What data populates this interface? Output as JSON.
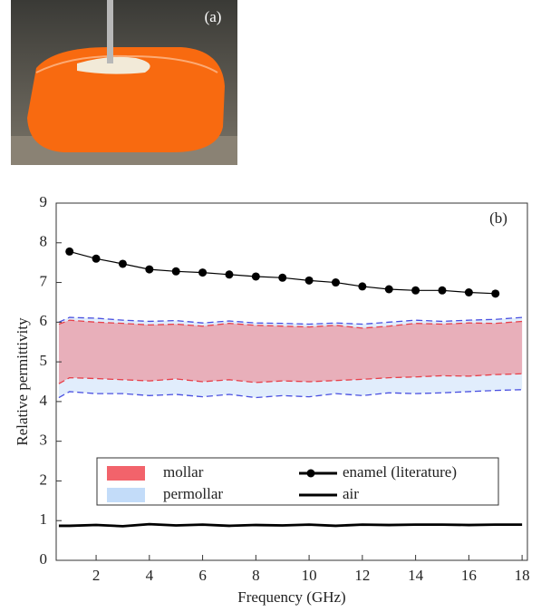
{
  "panel_a": {
    "label": "(a)"
  },
  "chart_data": {
    "type": "band-line",
    "panel_label": "(b)",
    "x_label": "Frequency (GHz)",
    "y_label": "Relative permittivity",
    "xlim": [
      0.5,
      18.2
    ],
    "xticks": [
      2,
      4,
      6,
      8,
      10,
      12,
      14,
      16,
      18
    ],
    "ylim": [
      0,
      9
    ],
    "yticks": [
      0,
      1,
      2,
      3,
      4,
      5,
      6,
      7,
      8,
      9
    ],
    "x": [
      0.6,
      1,
      2,
      3,
      4,
      5,
      6,
      7,
      8,
      9,
      10,
      11,
      12,
      13,
      14,
      15,
      16,
      17,
      18
    ],
    "bands": [
      {
        "name": "permollar",
        "color": "#4a50e0",
        "fill": "#bcd8f8",
        "upper": [
          6.0,
          6.12,
          6.1,
          6.05,
          6.02,
          6.04,
          5.98,
          6.03,
          5.98,
          5.97,
          5.95,
          5.98,
          5.95,
          6.0,
          6.05,
          6.02,
          6.05,
          6.07,
          6.12
        ],
        "lower": [
          4.1,
          4.25,
          4.2,
          4.2,
          4.15,
          4.18,
          4.12,
          4.18,
          4.1,
          4.15,
          4.12,
          4.2,
          4.15,
          4.22,
          4.2,
          4.22,
          4.25,
          4.28,
          4.3
        ]
      },
      {
        "name": "mollar",
        "color": "#e8404a",
        "fill": "#f2636b",
        "upper": [
          5.95,
          6.05,
          6.0,
          5.97,
          5.93,
          5.95,
          5.9,
          5.97,
          5.92,
          5.9,
          5.88,
          5.92,
          5.85,
          5.9,
          5.97,
          5.95,
          5.98,
          5.97,
          6.02
        ],
        "lower": [
          4.45,
          4.6,
          4.58,
          4.55,
          4.52,
          4.57,
          4.5,
          4.55,
          4.48,
          4.52,
          4.5,
          4.53,
          4.56,
          4.6,
          4.62,
          4.65,
          4.64,
          4.68,
          4.7
        ]
      }
    ],
    "series": [
      {
        "name": "enamel (literature)",
        "color": "#000000",
        "marker": true,
        "x": [
          1,
          2,
          3,
          4,
          5,
          6,
          7,
          8,
          9,
          10,
          11,
          12,
          13,
          14,
          15,
          16,
          17
        ],
        "values": [
          7.78,
          7.6,
          7.47,
          7.33,
          7.28,
          7.25,
          7.2,
          7.15,
          7.12,
          7.05,
          7.0,
          6.9,
          6.83,
          6.8,
          6.8,
          6.75,
          6.72
        ]
      },
      {
        "name": "air",
        "color": "#000000",
        "marker": false,
        "x": [
          0.6,
          1,
          2,
          3,
          4,
          5,
          6,
          7,
          8,
          9,
          10,
          11,
          12,
          13,
          14,
          15,
          16,
          17,
          18
        ],
        "values": [
          0.87,
          0.87,
          0.89,
          0.86,
          0.91,
          0.88,
          0.9,
          0.87,
          0.89,
          0.88,
          0.9,
          0.87,
          0.9,
          0.89,
          0.9,
          0.9,
          0.89,
          0.9,
          0.9
        ]
      }
    ]
  }
}
